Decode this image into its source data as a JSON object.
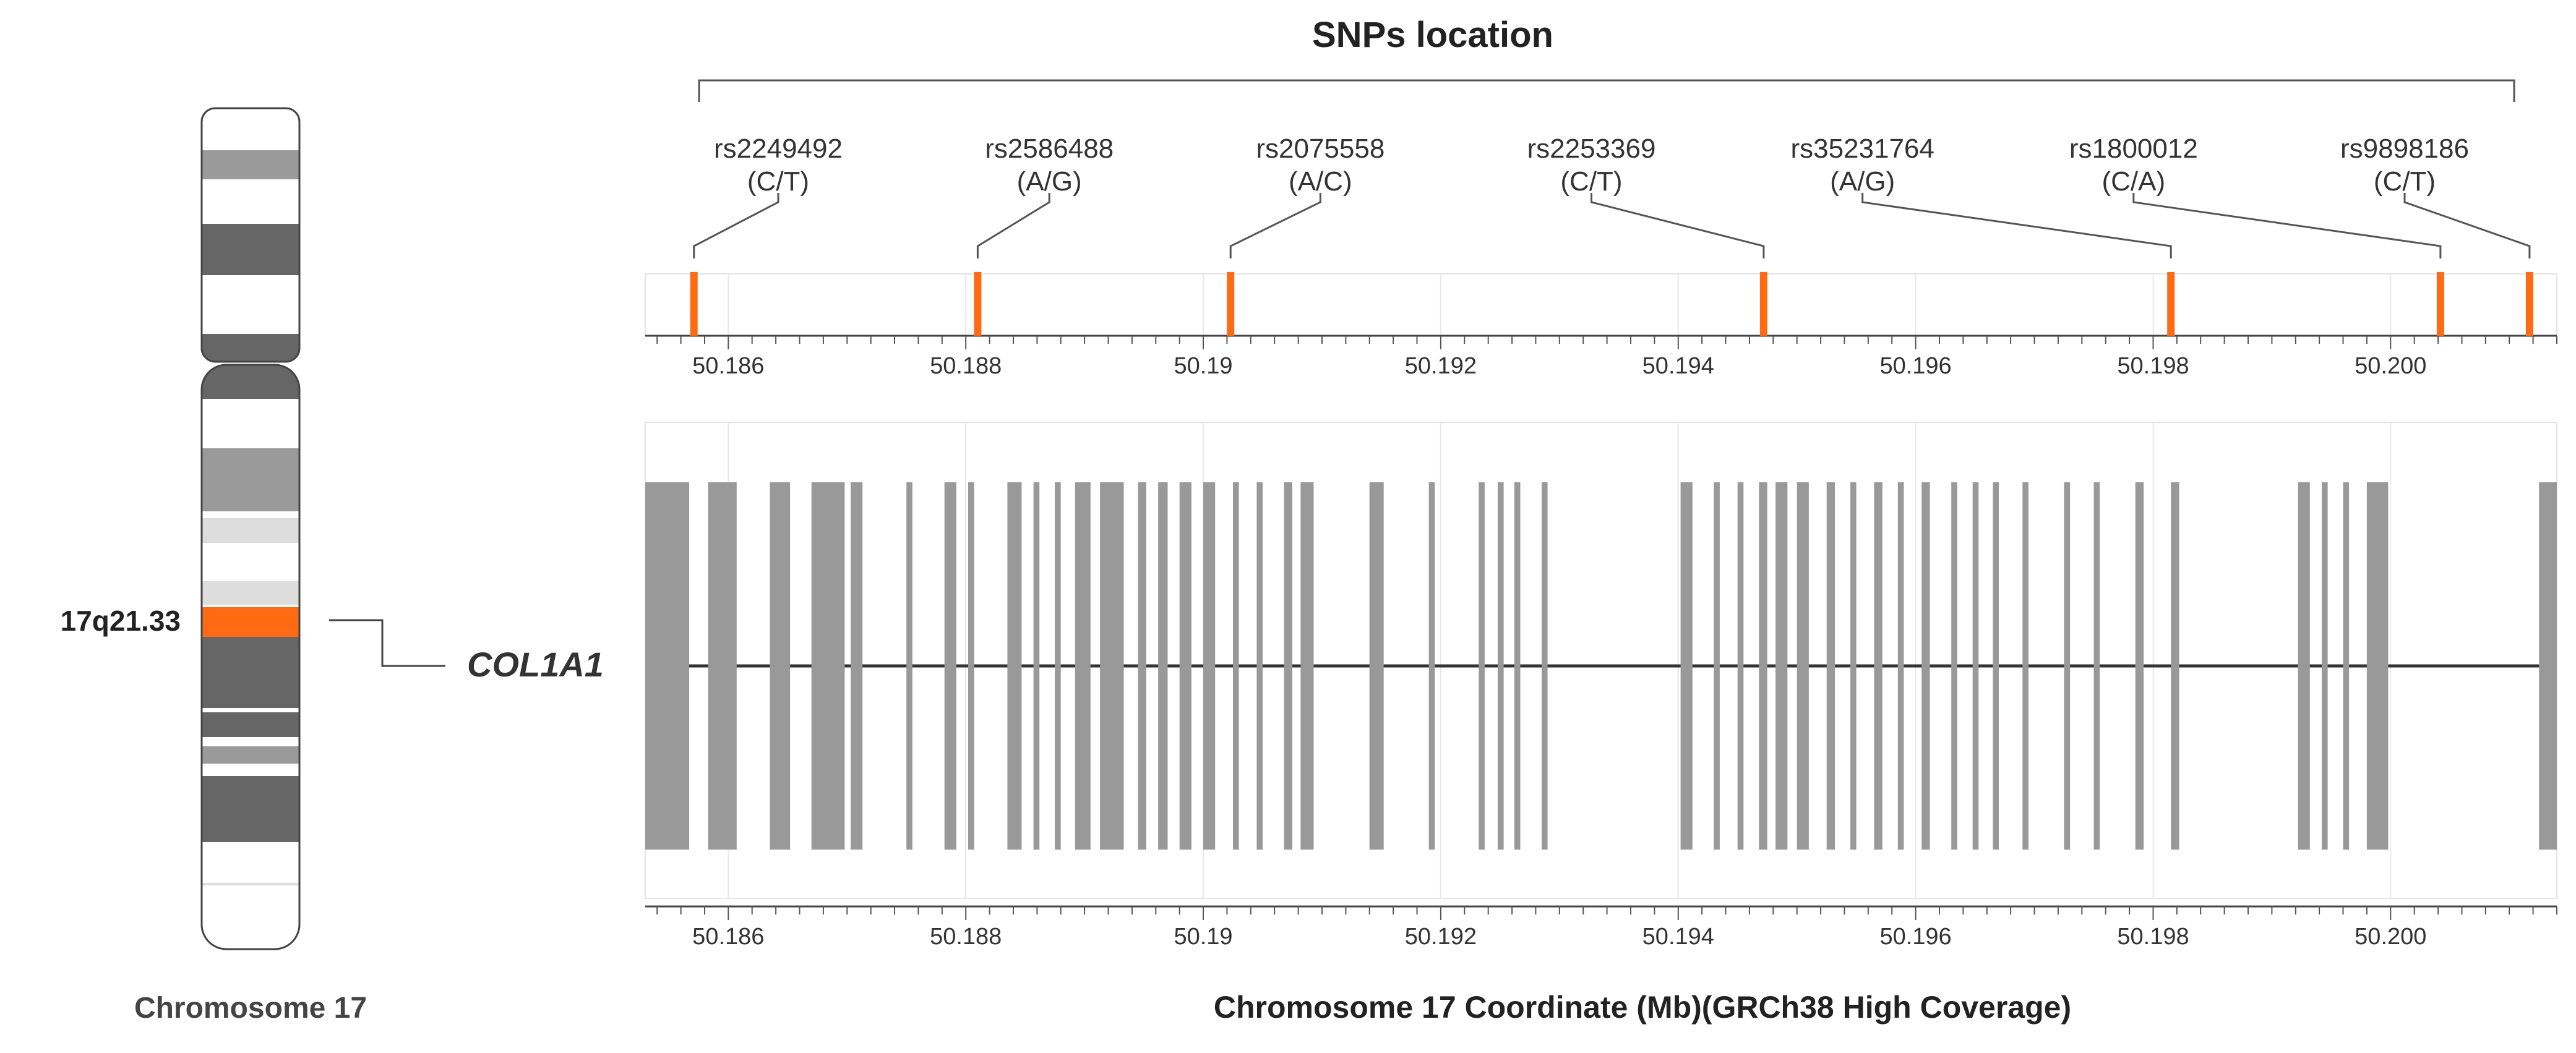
{
  "title": "SNPs location",
  "chromosome": {
    "label": "Chromosome 17",
    "band_label": "17q21.33",
    "gene_label": "COL1A1",
    "highlight_color": "#ff6a13"
  },
  "xlabel": "Chromosome 17 Coordinate (Mb)(GRCh38 High Coverage)",
  "chart_data": {
    "type": "gene-track",
    "xlim": [
      50.1853,
      50.2014
    ],
    "ticks": [
      {
        "value": 50.186,
        "label": "50.186"
      },
      {
        "value": 50.188,
        "label": "50.188"
      },
      {
        "value": 50.19,
        "label": "50.19"
      },
      {
        "value": 50.192,
        "label": "50.192"
      },
      {
        "value": 50.194,
        "label": "50.194"
      },
      {
        "value": 50.196,
        "label": "50.196"
      },
      {
        "value": 50.198,
        "label": "50.198"
      },
      {
        "value": 50.2,
        "label": "50.200"
      }
    ],
    "snps": [
      {
        "id": "rs2249492",
        "alleles": "(C/T)",
        "pos": 50.18571
      },
      {
        "id": "rs2586488",
        "alleles": "(A/G)",
        "pos": 50.1881
      },
      {
        "id": "rs2075558",
        "alleles": "(A/C)",
        "pos": 50.19023
      },
      {
        "id": "rs2253369",
        "alleles": "(C/T)",
        "pos": 50.19472
      },
      {
        "id": "rs35231764",
        "alleles": "(A/G)",
        "pos": 50.19815
      },
      {
        "id": "rs1800012",
        "alleles": "(C/A)",
        "pos": 50.20042
      },
      {
        "id": "rs9898186",
        "alleles": "(C/T)",
        "pos": 50.20117
      }
    ],
    "exons": [
      [
        50.1853,
        50.18567
      ],
      [
        50.18583,
        50.18607
      ],
      [
        50.18635,
        50.18652
      ],
      [
        50.1867,
        50.18698
      ],
      [
        50.18703,
        50.18713
      ],
      [
        50.1875,
        50.18755
      ],
      [
        50.18782,
        50.18792
      ],
      [
        50.18802,
        50.18807
      ],
      [
        50.18835,
        50.18847
      ],
      [
        50.18857,
        50.18862
      ],
      [
        50.18875,
        50.1888
      ],
      [
        50.18892,
        50.18905
      ],
      [
        50.18913,
        50.18933
      ],
      [
        50.18945,
        50.18952
      ],
      [
        50.18962,
        50.1897
      ],
      [
        50.1898,
        50.1899
      ],
      [
        50.19,
        50.1901
      ],
      [
        50.19025,
        50.1903
      ],
      [
        50.19045,
        50.1905
      ],
      [
        50.19068,
        50.19075
      ],
      [
        50.19082,
        50.19093
      ],
      [
        50.1914,
        50.19152
      ],
      [
        50.1919,
        50.19195
      ],
      [
        50.19232,
        50.19237
      ],
      [
        50.19248,
        50.19253
      ],
      [
        50.19262,
        50.19267
      ],
      [
        50.19285,
        50.1929
      ],
      [
        50.19402,
        50.19412
      ],
      [
        50.1943,
        50.19435
      ],
      [
        50.1945,
        50.19455
      ],
      [
        50.19468,
        50.19475
      ],
      [
        50.19482,
        50.19492
      ],
      [
        50.195,
        50.1951
      ],
      [
        50.19525,
        50.19532
      ],
      [
        50.19545,
        50.1955
      ],
      [
        50.19565,
        50.19572
      ],
      [
        50.19585,
        50.1959
      ],
      [
        50.19605,
        50.19612
      ],
      [
        50.1963,
        50.19635
      ],
      [
        50.19648,
        50.19653
      ],
      [
        50.19665,
        50.1967
      ],
      [
        50.1969,
        50.19695
      ],
      [
        50.19725,
        50.1973
      ],
      [
        50.1975,
        50.19755
      ],
      [
        50.19785,
        50.19792
      ],
      [
        50.19815,
        50.19822
      ],
      [
        50.19922,
        50.19932
      ],
      [
        50.19942,
        50.19947
      ],
      [
        50.1996,
        50.19965
      ],
      [
        50.1998,
        50.19998
      ],
      [
        50.20125,
        50.2014
      ]
    ]
  }
}
